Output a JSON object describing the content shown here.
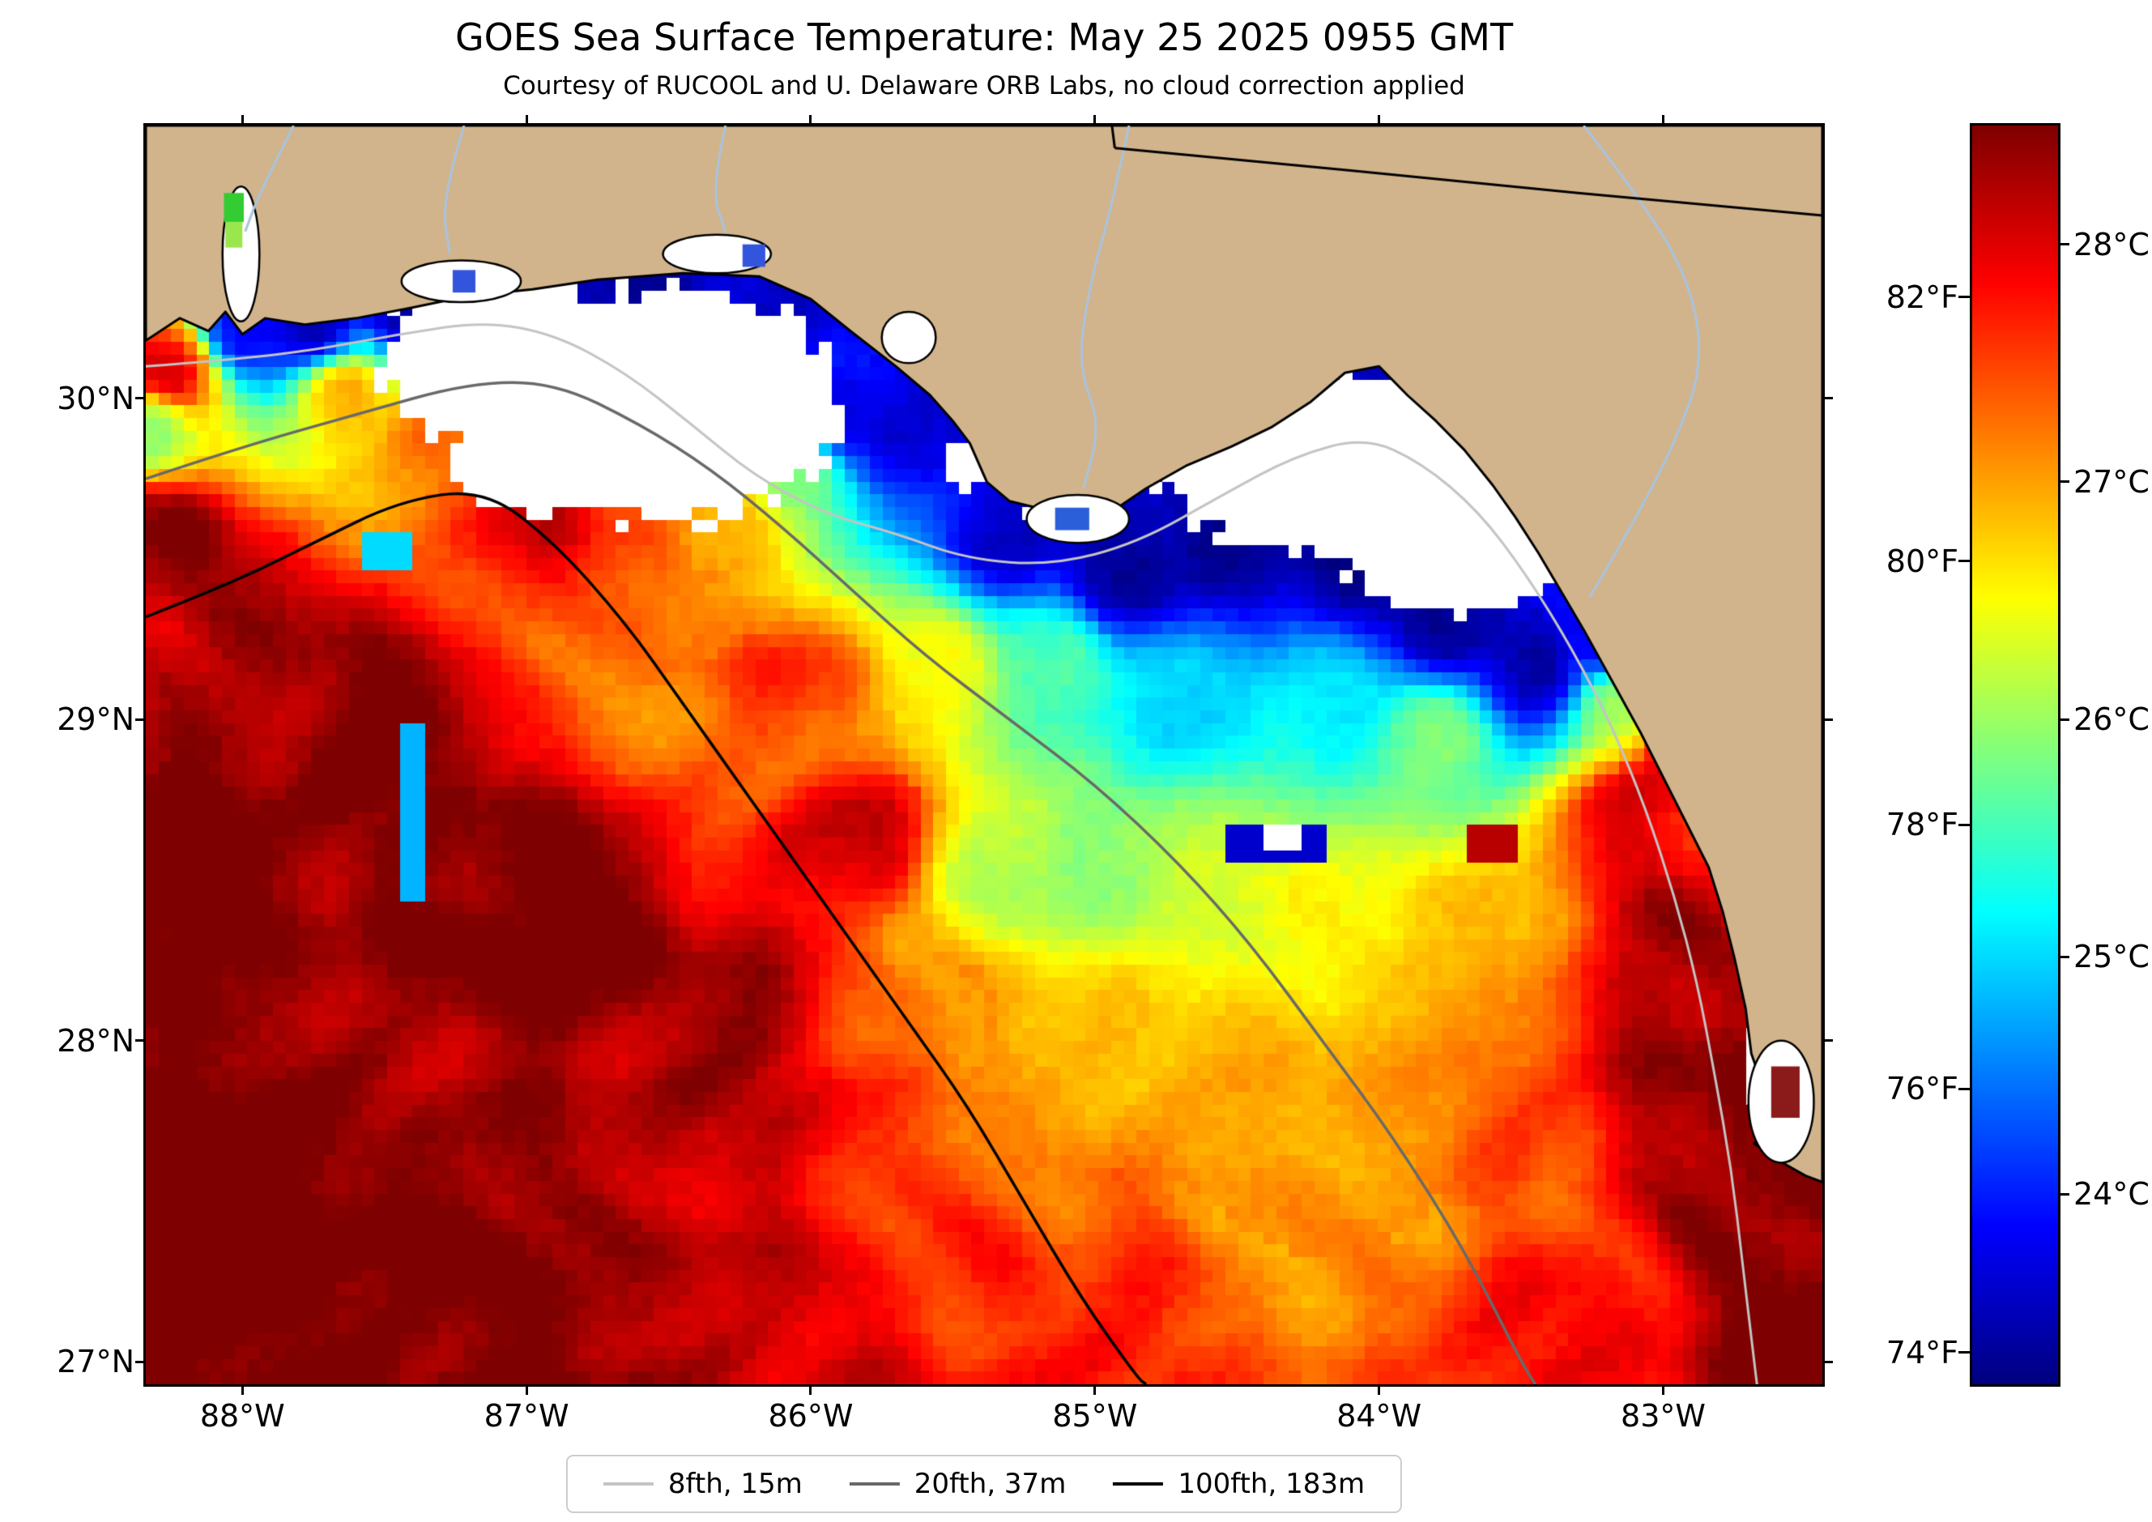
{
  "chart_data": {
    "type": "heatmap",
    "title": "GOES Sea Surface Temperature: May 25 2025 0955 GMT",
    "subtitle": "Courtesy of RUCOOL and U. Delaware ORB Labs, no cloud correction applied",
    "extent": {
      "lon_min": -88.34,
      "lon_max": -82.44,
      "lat_min": 26.93,
      "lat_max": 30.85
    },
    "xticks": [
      {
        "value": -88,
        "label": "88°W"
      },
      {
        "value": -87,
        "label": "87°W"
      },
      {
        "value": -86,
        "label": "86°W"
      },
      {
        "value": -85,
        "label": "85°W"
      },
      {
        "value": -84,
        "label": "84°W"
      },
      {
        "value": -83,
        "label": "83°W"
      }
    ],
    "yticks": [
      {
        "value": 30,
        "label": "30°N"
      },
      {
        "value": 29,
        "label": "29°N"
      },
      {
        "value": 28,
        "label": "28°N"
      },
      {
        "value": 27,
        "label": "27°N"
      }
    ],
    "colorbar": {
      "colormap": "jet",
      "range_c": [
        23.2,
        28.5
      ],
      "ticks_c": [
        {
          "value": 24,
          "label": "24°C"
        },
        {
          "value": 25,
          "label": "25°C"
        },
        {
          "value": 26,
          "label": "26°C"
        },
        {
          "value": 27,
          "label": "27°C"
        },
        {
          "value": 28,
          "label": "28°C"
        }
      ],
      "ticks_f": [
        {
          "value_f": 74,
          "label": "74°F"
        },
        {
          "value_f": 76,
          "label": "76°F"
        },
        {
          "value_f": 78,
          "label": "78°F"
        },
        {
          "value_f": 80,
          "label": "80°F"
        },
        {
          "value_f": 82,
          "label": "82°F"
        }
      ],
      "stops": [
        [
          0.0,
          "#00007F"
        ],
        [
          0.125,
          "#0000FF"
        ],
        [
          0.25,
          "#007FFF"
        ],
        [
          0.375,
          "#00FFFF"
        ],
        [
          0.5,
          "#7FFF7F"
        ],
        [
          0.625,
          "#FFFF00"
        ],
        [
          0.75,
          "#FF7F00"
        ],
        [
          0.875,
          "#FF0000"
        ],
        [
          1.0,
          "#7F0000"
        ]
      ]
    },
    "legend": [
      {
        "label": "8fth, 15m",
        "color": "#c4c4c4"
      },
      {
        "label": "20fth, 37m",
        "color": "#696969"
      },
      {
        "label": "100fth, 183m",
        "color": "#000000"
      }
    ],
    "land_color": "#d2b48c",
    "cloud_color": "#ffffff",
    "river_color": "#a9c4de",
    "field_points": [
      [
        -88.0,
        30.22,
        23.8
      ],
      [
        -87.75,
        30.22,
        23.4
      ],
      [
        -87.4,
        30.28,
        23.3
      ],
      [
        -87.0,
        30.28,
        23.3
      ],
      [
        -86.6,
        30.3,
        23.4
      ],
      [
        -86.15,
        30.25,
        23.6
      ],
      [
        -85.9,
        29.95,
        23.7
      ],
      [
        -85.65,
        29.9,
        23.6
      ],
      [
        -85.3,
        29.58,
        23.6
      ],
      [
        -84.9,
        29.45,
        23.3
      ],
      [
        -84.5,
        29.55,
        23.3
      ],
      [
        -84.4,
        29.95,
        23.3
      ],
      [
        -84.1,
        29.5,
        23.3
      ],
      [
        -83.9,
        29.8,
        23.3
      ],
      [
        -83.75,
        29.3,
        23.3
      ],
      [
        -83.45,
        29.15,
        23.4
      ],
      [
        -83.2,
        29.25,
        23.8
      ],
      [
        -88.32,
        29.9,
        26.0
      ],
      [
        -88.25,
        30.1,
        28.2
      ],
      [
        -88.3,
        29.6,
        28.5
      ],
      [
        -87.9,
        29.3,
        28.4
      ],
      [
        -88.25,
        28.6,
        28.7
      ],
      [
        -87.65,
        30.02,
        27.0
      ],
      [
        -87.3,
        29.9,
        27.5
      ],
      [
        -87.0,
        29.6,
        28.0
      ],
      [
        -86.55,
        29.5,
        27.6
      ],
      [
        -86.3,
        29.62,
        27.0
      ],
      [
        -86.05,
        29.8,
        26.0
      ],
      [
        -86.0,
        29.1,
        27.6
      ],
      [
        -87.5,
        28.9,
        28.8
      ],
      [
        -86.85,
        28.35,
        28.8
      ],
      [
        -86.3,
        28.0,
        28.4
      ],
      [
        -86.5,
        27.5,
        28.2
      ],
      [
        -87.2,
        27.2,
        28.5
      ],
      [
        -87.9,
        27.6,
        28.7
      ],
      [
        -88.25,
        27.1,
        28.7
      ],
      [
        -87.0,
        26.95,
        28.6
      ],
      [
        -87.9,
        26.95,
        28.7
      ],
      [
        -85.55,
        29.15,
        26.6
      ],
      [
        -85.15,
        29.2,
        25.6
      ],
      [
        -84.7,
        29.1,
        25.0
      ],
      [
        -84.2,
        29.05,
        25.2
      ],
      [
        -83.8,
        28.95,
        25.8
      ],
      [
        -83.15,
        29.05,
        26.0
      ],
      [
        -85.85,
        28.6,
        28.2
      ],
      [
        -85.35,
        28.5,
        26.2
      ],
      [
        -84.95,
        28.55,
        25.9
      ],
      [
        -84.6,
        28.45,
        26.4
      ],
      [
        -84.15,
        28.4,
        26.6
      ],
      [
        -83.75,
        28.3,
        26.9
      ],
      [
        -85.55,
        28.1,
        27.3
      ],
      [
        -85.0,
        28.0,
        26.8
      ],
      [
        -84.5,
        27.9,
        26.9
      ],
      [
        -84.0,
        27.8,
        27.0
      ],
      [
        -83.5,
        27.7,
        27.3
      ],
      [
        -84.3,
        27.3,
        27.2
      ],
      [
        -84.9,
        27.3,
        27.5
      ],
      [
        -85.5,
        27.3,
        27.7
      ],
      [
        -85.9,
        26.95,
        28.0
      ],
      [
        -85.0,
        26.95,
        27.6
      ],
      [
        -84.1,
        26.95,
        27.3
      ],
      [
        -83.3,
        26.95,
        27.7
      ],
      [
        -83.2,
        27.2,
        27.8
      ],
      [
        -83.1,
        28.7,
        28.0
      ],
      [
        -82.95,
        28.3,
        28.4
      ],
      [
        -82.85,
        27.8,
        28.5
      ],
      [
        -82.75,
        27.4,
        28.6
      ],
      [
        -82.5,
        27.0,
        28.7
      ],
      [
        -82.9,
        28.95,
        28.2
      ]
    ],
    "clouds": [
      [
        -87.08,
        30.12,
        0.4,
        0.26
      ],
      [
        -86.5,
        29.98,
        0.56,
        0.34
      ],
      [
        -86.95,
        29.8,
        0.28,
        0.16
      ],
      [
        -84.18,
        29.8,
        0.55,
        0.26
      ],
      [
        -83.74,
        29.56,
        0.38,
        0.22
      ],
      [
        -84.55,
        29.92,
        0.28,
        0.16
      ],
      [
        -82.56,
        28.88,
        0.13,
        0.3
      ],
      [
        -82.52,
        28.34,
        0.11,
        0.24
      ],
      [
        -82.62,
        27.92,
        0.09,
        0.12
      ],
      [
        -85.08,
        29.63,
        0.16,
        0.06
      ],
      [
        -85.44,
        29.8,
        0.09,
        0.08
      ],
      [
        -88.28,
        30.42,
        0.09,
        0.06
      ]
    ],
    "overrides": [
      [
        -84.5,
        28.585,
        -84.22,
        28.645,
        23.6
      ],
      [
        -84.4,
        28.6,
        -84.3,
        28.64,
        null
      ],
      [
        -87.42,
        28.45,
        -87.36,
        28.95,
        24.8
      ],
      [
        -87.55,
        29.5,
        -87.43,
        29.58,
        25.0
      ],
      [
        -83.68,
        28.56,
        -83.52,
        28.64,
        28.2
      ]
    ],
    "land_polygon": [
      [
        -88.34,
        30.18
      ],
      [
        -88.22,
        30.25
      ],
      [
        -88.12,
        30.21
      ],
      [
        -88.06,
        30.27
      ],
      [
        -88.0,
        30.2
      ],
      [
        -87.92,
        30.25
      ],
      [
        -87.78,
        30.23
      ],
      [
        -87.6,
        30.25
      ],
      [
        -87.42,
        30.28
      ],
      [
        -87.2,
        30.32
      ],
      [
        -86.98,
        30.34
      ],
      [
        -86.75,
        30.37
      ],
      [
        -86.45,
        30.39
      ],
      [
        -86.18,
        30.38
      ],
      [
        -86.0,
        30.31
      ],
      [
        -85.86,
        30.21
      ],
      [
        -85.7,
        30.1
      ],
      [
        -85.58,
        30.01
      ],
      [
        -85.5,
        29.93
      ],
      [
        -85.44,
        29.86
      ],
      [
        -85.38,
        29.74
      ],
      [
        -85.3,
        29.68
      ],
      [
        -85.16,
        29.65
      ],
      [
        -85.02,
        29.62
      ],
      [
        -84.92,
        29.66
      ],
      [
        -84.82,
        29.72
      ],
      [
        -84.68,
        29.79
      ],
      [
        -84.52,
        29.85
      ],
      [
        -84.38,
        29.91
      ],
      [
        -84.24,
        29.99
      ],
      [
        -84.12,
        30.08
      ],
      [
        -84.0,
        30.1
      ],
      [
        -83.9,
        30.01
      ],
      [
        -83.8,
        29.93
      ],
      [
        -83.7,
        29.84
      ],
      [
        -83.6,
        29.73
      ],
      [
        -83.52,
        29.63
      ],
      [
        -83.44,
        29.52
      ],
      [
        -83.36,
        29.4
      ],
      [
        -83.28,
        29.28
      ],
      [
        -83.18,
        29.12
      ],
      [
        -83.08,
        28.96
      ],
      [
        -83.0,
        28.82
      ],
      [
        -82.92,
        28.68
      ],
      [
        -82.84,
        28.54
      ],
      [
        -82.79,
        28.4
      ],
      [
        -82.75,
        28.26
      ],
      [
        -82.71,
        28.1
      ],
      [
        -82.69,
        27.96
      ],
      [
        -82.65,
        27.86
      ],
      [
        -82.7,
        27.8
      ],
      [
        -82.6,
        27.76
      ],
      [
        -82.68,
        27.68
      ],
      [
        -82.58,
        27.62
      ],
      [
        -82.5,
        27.58
      ],
      [
        -82.44,
        27.56
      ],
      [
        -82.44,
        30.85
      ],
      [
        -88.34,
        30.85
      ]
    ],
    "lagoons": [
      [
        -88.07,
        30.24,
        -87.94,
        30.66
      ],
      [
        -87.44,
        30.3,
        -87.02,
        30.43
      ],
      [
        -86.52,
        30.39,
        -86.14,
        30.51
      ],
      [
        -85.75,
        30.11,
        -85.56,
        30.27
      ],
      [
        -85.24,
        29.55,
        -84.88,
        29.7
      ],
      [
        -82.7,
        27.62,
        -82.47,
        28.0
      ]
    ],
    "lagoon_pixels": [
      [
        -88.065,
        30.55,
        -87.995,
        30.64,
        "#33cc33"
      ],
      [
        -88.06,
        30.47,
        -88.0,
        30.55,
        "#99e64d"
      ],
      [
        -87.26,
        30.33,
        -87.18,
        30.4,
        "#3355dd"
      ],
      [
        -86.24,
        30.41,
        -86.16,
        30.48,
        "#3355dd"
      ],
      [
        -85.14,
        29.59,
        -85.02,
        29.66,
        "#2b5fd9"
      ],
      [
        -82.62,
        27.76,
        -82.52,
        27.92,
        "#8b1a1a"
      ]
    ],
    "rivers": [
      [
        [
          -84.88,
          30.85
        ],
        [
          -84.94,
          30.6
        ],
        [
          -85.02,
          30.35
        ],
        [
          -85.06,
          30.1
        ],
        [
          -84.98,
          29.92
        ],
        [
          -85.04,
          29.72
        ]
      ],
      [
        [
          -83.28,
          30.85
        ],
        [
          -83.06,
          30.6
        ],
        [
          -82.9,
          30.35
        ],
        [
          -82.86,
          30.1
        ],
        [
          -82.96,
          29.86
        ],
        [
          -83.1,
          29.62
        ],
        [
          -83.26,
          29.38
        ]
      ],
      [
        [
          -87.82,
          30.85
        ],
        [
          -87.94,
          30.64
        ],
        [
          -87.99,
          30.52
        ]
      ],
      [
        [
          -87.22,
          30.85
        ],
        [
          -87.3,
          30.62
        ],
        [
          -87.27,
          30.45
        ]
      ],
      [
        [
          -86.3,
          30.85
        ],
        [
          -86.35,
          30.65
        ],
        [
          -86.3,
          30.52
        ]
      ]
    ],
    "borders": [
      [
        [
          -84.94,
          30.85
        ],
        [
          -84.93,
          30.78
        ]
      ],
      [
        [
          -84.93,
          30.78
        ],
        [
          -84.1,
          30.71
        ],
        [
          -83.3,
          30.64
        ],
        [
          -82.44,
          30.57
        ]
      ]
    ],
    "contours": [
      {
        "name": "8fth, 15m",
        "color": "#c4c4c4",
        "width": 3,
        "points": [
          [
            -88.34,
            30.1
          ],
          [
            -88.05,
            30.12
          ],
          [
            -87.75,
            30.15
          ],
          [
            -87.45,
            30.2
          ],
          [
            -87.15,
            30.24
          ],
          [
            -86.9,
            30.2
          ],
          [
            -86.65,
            30.08
          ],
          [
            -86.42,
            29.92
          ],
          [
            -86.2,
            29.76
          ],
          [
            -85.95,
            29.64
          ],
          [
            -85.7,
            29.58
          ],
          [
            -85.45,
            29.5
          ],
          [
            -85.15,
            29.48
          ],
          [
            -84.85,
            29.55
          ],
          [
            -84.55,
            29.7
          ],
          [
            -84.3,
            29.82
          ],
          [
            -84.05,
            29.88
          ],
          [
            -83.85,
            29.8
          ],
          [
            -83.65,
            29.65
          ],
          [
            -83.48,
            29.45
          ],
          [
            -83.32,
            29.22
          ],
          [
            -83.18,
            28.98
          ],
          [
            -83.06,
            28.72
          ],
          [
            -82.96,
            28.45
          ],
          [
            -82.88,
            28.18
          ],
          [
            -82.82,
            27.9
          ],
          [
            -82.76,
            27.6
          ],
          [
            -82.72,
            27.3
          ],
          [
            -82.68,
            27.0
          ],
          [
            -82.67,
            26.93
          ]
        ]
      },
      {
        "name": "20fth, 37m",
        "color": "#696969",
        "width": 3.5,
        "points": [
          [
            -88.34,
            29.75
          ],
          [
            -88.0,
            29.85
          ],
          [
            -87.6,
            29.95
          ],
          [
            -87.2,
            30.05
          ],
          [
            -86.9,
            30.05
          ],
          [
            -86.6,
            29.92
          ],
          [
            -86.35,
            29.78
          ],
          [
            -86.1,
            29.6
          ],
          [
            -85.85,
            29.4
          ],
          [
            -85.6,
            29.2
          ],
          [
            -85.3,
            29.0
          ],
          [
            -85.0,
            28.8
          ],
          [
            -84.7,
            28.55
          ],
          [
            -84.45,
            28.3
          ],
          [
            -84.2,
            28.0
          ],
          [
            -83.95,
            27.7
          ],
          [
            -83.7,
            27.35
          ],
          [
            -83.5,
            27.0
          ],
          [
            -83.45,
            26.93
          ]
        ]
      },
      {
        "name": "100fth, 183m",
        "color": "#000000",
        "width": 3.5,
        "points": [
          [
            -88.34,
            29.32
          ],
          [
            -88.05,
            29.42
          ],
          [
            -87.75,
            29.55
          ],
          [
            -87.45,
            29.68
          ],
          [
            -87.15,
            29.72
          ],
          [
            -86.9,
            29.55
          ],
          [
            -86.65,
            29.3
          ],
          [
            -86.45,
            29.05
          ],
          [
            -86.25,
            28.8
          ],
          [
            -86.05,
            28.55
          ],
          [
            -85.85,
            28.3
          ],
          [
            -85.65,
            28.05
          ],
          [
            -85.45,
            27.8
          ],
          [
            -85.25,
            27.5
          ],
          [
            -85.05,
            27.2
          ],
          [
            -84.85,
            26.95
          ],
          [
            -84.82,
            26.93
          ]
        ]
      }
    ]
  }
}
